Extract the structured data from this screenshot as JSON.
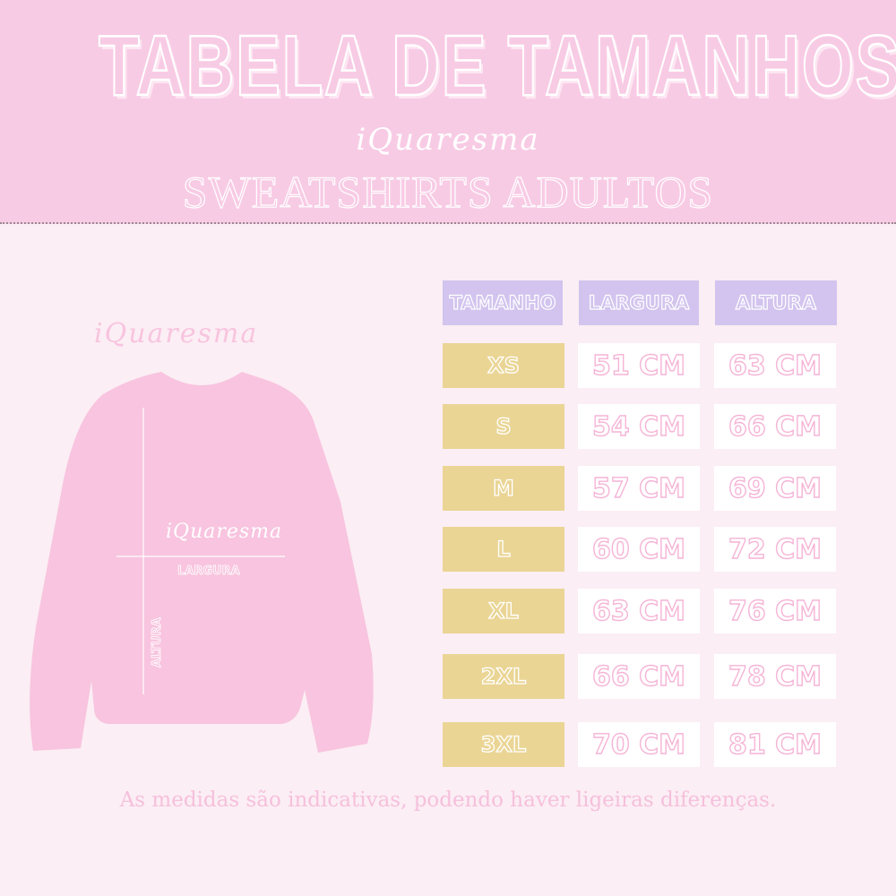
{
  "header": {
    "title": "TABELA DE TAMANHOS",
    "brand": "iQuaresma",
    "subtitle": "SWEATSHIRTS ADULTOS"
  },
  "illustration": {
    "brand": "iQuaresma",
    "brand_on_shirt": "iQuaresma",
    "width_label": "LARGURA",
    "height_label": "ALTURA",
    "shirt_color": "#f8c4df"
  },
  "table": {
    "headers": [
      "TAMANHO",
      "LARGURA",
      "ALTURA"
    ],
    "rows": [
      {
        "size": "XS",
        "width": "51 CM",
        "height": "63 CM"
      },
      {
        "size": "S",
        "width": "54 CM",
        "height": "66 CM"
      },
      {
        "size": "M",
        "width": "57 CM",
        "height": "69 CM"
      },
      {
        "size": "L",
        "width": "60 CM",
        "height": "72 CM"
      },
      {
        "size": "XL",
        "width": "63 CM",
        "height": "76 CM"
      },
      {
        "size": "2XL",
        "width": "66 CM",
        "height": "78 CM"
      },
      {
        "size": "3XL",
        "width": "70 CM",
        "height": "81 CM"
      }
    ]
  },
  "footer": "As medidas são indicativas, podendo haver ligeiras diferenças.",
  "colors": {
    "header_bg": "#f8cbe5",
    "body_bg": "#fbeef4",
    "header_cells": "#d2c4ee",
    "size_cells": "#ead595",
    "value_text": "#f5b4d6"
  }
}
